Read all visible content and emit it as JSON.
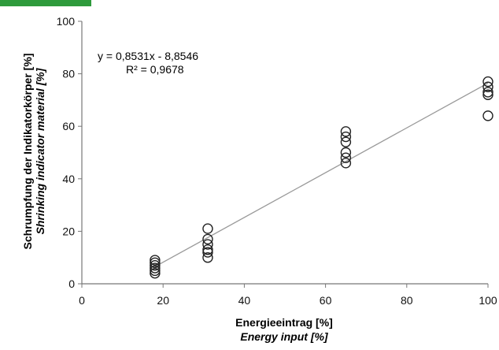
{
  "accent_color": "#2e9a3c",
  "chart_data": {
    "type": "scatter",
    "xlabel": "Energieeintrag [%]",
    "xlabel_en": "Energy input [%]",
    "ylabel": "Schrumpfung der Indikatorkörper [%]",
    "ylabel_en": "Shrinking indicator material [%]",
    "xlim": [
      0,
      100
    ],
    "ylim": [
      0,
      100
    ],
    "x_ticks": [
      0,
      20,
      40,
      60,
      80,
      100
    ],
    "y_ticks": [
      0,
      20,
      40,
      60,
      80,
      100
    ],
    "x_tick_labels": [
      "0",
      "20",
      "40",
      "60",
      "80",
      "100"
    ],
    "y_tick_labels": [
      "0",
      "20",
      "40",
      "60",
      "80",
      "100"
    ],
    "grid": false,
    "points": [
      {
        "x": 18,
        "y": 9
      },
      {
        "x": 18,
        "y": 8
      },
      {
        "x": 18,
        "y": 7
      },
      {
        "x": 18,
        "y": 6
      },
      {
        "x": 18,
        "y": 5
      },
      {
        "x": 18,
        "y": 4
      },
      {
        "x": 31,
        "y": 21
      },
      {
        "x": 31,
        "y": 17
      },
      {
        "x": 31,
        "y": 15
      },
      {
        "x": 31,
        "y": 13
      },
      {
        "x": 31,
        "y": 12
      },
      {
        "x": 31,
        "y": 10
      },
      {
        "x": 65,
        "y": 58
      },
      {
        "x": 65,
        "y": 56
      },
      {
        "x": 65,
        "y": 54
      },
      {
        "x": 65,
        "y": 50
      },
      {
        "x": 65,
        "y": 48
      },
      {
        "x": 65,
        "y": 46
      },
      {
        "x": 100,
        "y": 77
      },
      {
        "x": 100,
        "y": 75
      },
      {
        "x": 100,
        "y": 73
      },
      {
        "x": 100,
        "y": 72
      },
      {
        "x": 100,
        "y": 64
      }
    ],
    "trendline": {
      "slope": 0.8531,
      "intercept": -8.8546,
      "x_range": [
        18,
        100
      ],
      "equation": "y = 0,8531x - 8,8546",
      "r_squared": "R² = 0,9678"
    },
    "marker_color": "#222222",
    "line_color": "#999999",
    "axis_color": "#777777"
  }
}
